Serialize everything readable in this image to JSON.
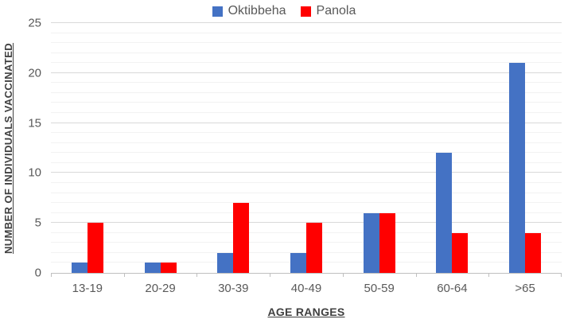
{
  "chart_data": {
    "type": "bar",
    "categories": [
      "13-19",
      "20-29",
      "30-39",
      "40-49",
      "50-59",
      "60-64",
      ">65"
    ],
    "series": [
      {
        "name": "Oktibbeha",
        "color": "#4472C4",
        "values": [
          1,
          1,
          2,
          2,
          6,
          12,
          21
        ]
      },
      {
        "name": "Panola",
        "color": "#FF0000",
        "values": [
          5,
          1,
          7,
          5,
          6,
          4,
          4
        ]
      }
    ],
    "xlabel": "AGE RANGES",
    "ylabel": "NUMBER OF INDIVIDUALS VACCINATED",
    "ylim": [
      0,
      25
    ],
    "yticks": [
      0,
      5,
      10,
      15,
      20,
      25
    ],
    "grid": {
      "minor_step": 1,
      "major_step": 5,
      "minor_color": "#F2F2F2",
      "major_color": "#D9D9D9"
    },
    "axis_color": "#BFBFBF",
    "text_color": "#595959",
    "title_color": "#404040",
    "legend_position": "top"
  }
}
